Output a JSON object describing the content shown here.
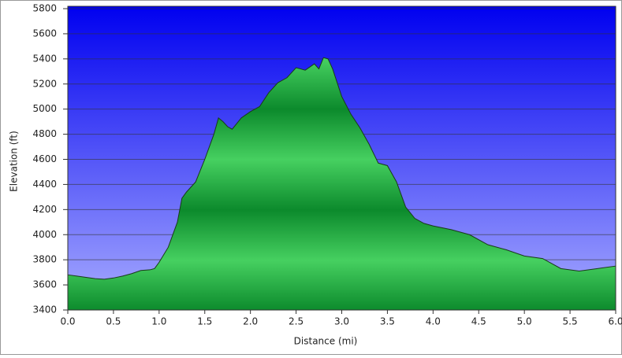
{
  "chart_data": {
    "type": "area",
    "x_label": "Distance (mi)",
    "y_label": "Elevation (ft)",
    "x": [
      0,
      0.1,
      0.2,
      0.3,
      0.4,
      0.5,
      0.6,
      0.7,
      0.8,
      0.9,
      0.95,
      1.0,
      1.1,
      1.2,
      1.25,
      1.3,
      1.4,
      1.5,
      1.6,
      1.65,
      1.7,
      1.75,
      1.8,
      1.9,
      2.0,
      2.1,
      2.2,
      2.3,
      2.4,
      2.5,
      2.6,
      2.7,
      2.75,
      2.8,
      2.85,
      2.9,
      3.0,
      3.1,
      3.2,
      3.3,
      3.4,
      3.5,
      3.6,
      3.7,
      3.8,
      3.9,
      4.0,
      4.2,
      4.4,
      4.6,
      4.8,
      5.0,
      5.2,
      5.4,
      5.6,
      5.8,
      6.0
    ],
    "series": [
      {
        "color": "#1e9e3e",
        "values": [
          3680,
          3670,
          3660,
          3650,
          3645,
          3655,
          3670,
          3690,
          3715,
          3720,
          3730,
          3780,
          3900,
          4100,
          4290,
          4340,
          4420,
          4600,
          4800,
          4930,
          4900,
          4860,
          4840,
          4930,
          4980,
          5020,
          5130,
          5210,
          5250,
          5330,
          5310,
          5360,
          5320,
          5410,
          5400,
          5320,
          5100,
          4960,
          4850,
          4720,
          4570,
          4550,
          4420,
          4220,
          4130,
          4090,
          4070,
          4040,
          4000,
          3920,
          3880,
          3830,
          3810,
          3730,
          3710,
          3730,
          3750
        ]
      }
    ],
    "xlim": [
      0,
      6
    ],
    "xticks": [
      {
        "value": 0,
        "label": "0.0"
      },
      0.5,
      {
        "value": 1,
        "label": "1.0"
      },
      1.5,
      {
        "value": 2,
        "label": "2.0"
      },
      2.5,
      {
        "value": 3,
        "label": "3.0"
      },
      3.5,
      {
        "value": 4,
        "label": "4.0"
      },
      4.5,
      {
        "value": 5,
        "label": "5.0"
      },
      5.5,
      {
        "value": 6,
        "label": "6.0"
      }
    ],
    "ylim": [
      3400,
      5800
    ],
    "yticks": [
      3400,
      3600,
      3800,
      4000,
      4200,
      4400,
      4600,
      4800,
      5000,
      5200,
      5400,
      5600,
      5800
    ],
    "grid": true
  }
}
